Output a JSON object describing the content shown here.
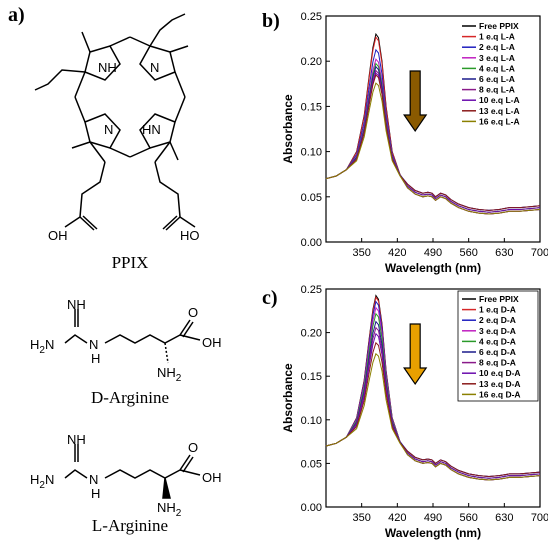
{
  "figure": {
    "label_a": "a)",
    "label_b": "b)",
    "label_c": "c)"
  },
  "molecules": {
    "ppix": {
      "caption": "PPIX",
      "atoms": {
        "nh": "NH",
        "n": "N",
        "hn": "HN",
        "oh": "OH",
        "ho": "HO"
      }
    },
    "d_arginine": {
      "caption": "D-Arginine",
      "atoms": {
        "nh": "NH",
        "h2n": "H2N",
        "n_h": "N",
        "h": "H",
        "o": "O",
        "oh": "OH",
        "nh2": "NH2"
      }
    },
    "l_arginine": {
      "caption": "L-Arginine",
      "atoms": {
        "nh": "NH",
        "h2n": "H2N",
        "n_h": "N",
        "h": "H",
        "o": "O",
        "oh": "OH",
        "nh2": "NH2"
      }
    }
  },
  "colors": {
    "arrow_b_fill": "#8a5a00",
    "arrow_c_fill": "#e8a000",
    "axis": "#000000"
  },
  "chart_data": [
    {
      "type": "line",
      "panel": "b",
      "xlabel": "Wavelength (nm)",
      "ylabel": "Absorbance",
      "xlim": [
        280,
        700
      ],
      "ylim": [
        0,
        0.25
      ],
      "xticks": [
        350,
        420,
        490,
        560,
        630,
        700
      ],
      "yticks": [
        0.0,
        0.05,
        0.1,
        0.15,
        0.2,
        0.25
      ],
      "xtick_labels": [
        "350",
        "420",
        "490",
        "560",
        "630",
        "700"
      ],
      "ytick_labels": [
        "0.00",
        "0.05",
        "0.10",
        "0.15",
        "0.20",
        "0.25"
      ],
      "legend_position": "top-right",
      "legend_box": false,
      "series": [
        {
          "name": "Free PPIX",
          "color": "#000000",
          "peak": 0.23
        },
        {
          "name": "1 e.q L-A",
          "color": "#d62728",
          "peak": 0.225
        },
        {
          "name": "2 e.q L-A",
          "color": "#1f1fbf",
          "peak": 0.205
        },
        {
          "name": "3 e.q L-A",
          "color": "#c020c0",
          "peak": 0.19
        },
        {
          "name": "4 e.q L-A",
          "color": "#2a9a2a",
          "peak": 0.183
        },
        {
          "name": "6 e.q L-A",
          "color": "#1a1a8a",
          "peak": 0.178
        },
        {
          "name": "8 e.q L-A",
          "color": "#8a1a8a",
          "peak": 0.172
        },
        {
          "name": "10 e.q L-A",
          "color": "#6a0dad",
          "peak": 0.168
        },
        {
          "name": "13 e.q L-A",
          "color": "#8b1a1a",
          "peak": 0.165
        },
        {
          "name": "16 e.q L-A",
          "color": "#8b8000",
          "peak": 0.152
        }
      ],
      "profile": {
        "x": [
          280,
          300,
          320,
          340,
          355,
          365,
          372,
          378,
          383,
          390,
          398,
          410,
          425,
          440,
          455,
          470,
          480,
          488,
          495,
          505,
          515,
          525,
          540,
          560,
          580,
          600,
          620,
          640,
          660,
          680,
          700
        ],
        "base_at_peak_0230": [
          0.07,
          0.073,
          0.08,
          0.1,
          0.14,
          0.185,
          0.215,
          0.23,
          0.226,
          0.2,
          0.15,
          0.1,
          0.075,
          0.062,
          0.055,
          0.052,
          0.053,
          0.052,
          0.048,
          0.052,
          0.05,
          0.045,
          0.04,
          0.036,
          0.034,
          0.033,
          0.034,
          0.036,
          0.036,
          0.037,
          0.038
        ]
      }
    },
    {
      "type": "line",
      "panel": "c",
      "xlabel": "Wavelength (nm)",
      "ylabel": "Absorbance",
      "xlim": [
        280,
        700
      ],
      "ylim": [
        0,
        0.25
      ],
      "xticks": [
        350,
        420,
        490,
        560,
        630,
        700
      ],
      "yticks": [
        0.0,
        0.05,
        0.1,
        0.15,
        0.2,
        0.25
      ],
      "xtick_labels": [
        "350",
        "420",
        "490",
        "560",
        "630",
        "700"
      ],
      "ytick_labels": [
        "0.00",
        "0.05",
        "0.10",
        "0.15",
        "0.20",
        "0.25"
      ],
      "legend_position": "top-right",
      "legend_box": true,
      "series": [
        {
          "name": "Free PPIX",
          "color": "#000000",
          "peak": 0.248
        },
        {
          "name": "1 e.q D-A",
          "color": "#d62728",
          "peak": 0.245
        },
        {
          "name": "2 e.q D-A",
          "color": "#1f1fbf",
          "peak": 0.238
        },
        {
          "name": "3 e.q D-A",
          "color": "#c020c0",
          "peak": 0.228
        },
        {
          "name": "4 e.q D-A",
          "color": "#2a9a2a",
          "peak": 0.218
        },
        {
          "name": "6 e.q D-A",
          "color": "#1a1a8a",
          "peak": 0.205
        },
        {
          "name": "8 e.q D-A",
          "color": "#8a1a8a",
          "peak": 0.195
        },
        {
          "name": "10 e.q D-A",
          "color": "#6a0dad",
          "peak": 0.185
        },
        {
          "name": "13 e.q D-A",
          "color": "#8b1a1a",
          "peak": 0.17
        },
        {
          "name": "16 e.q D-A",
          "color": "#8b8000",
          "peak": 0.152
        }
      ],
      "profile": {
        "x": [
          280,
          300,
          320,
          340,
          355,
          365,
          372,
          378,
          383,
          390,
          398,
          410,
          425,
          440,
          455,
          470,
          480,
          488,
          495,
          505,
          515,
          525,
          540,
          560,
          580,
          600,
          620,
          640,
          660,
          680,
          700
        ],
        "base_at_peak_0230": [
          0.07,
          0.073,
          0.08,
          0.1,
          0.14,
          0.185,
          0.215,
          0.23,
          0.226,
          0.2,
          0.15,
          0.1,
          0.075,
          0.062,
          0.055,
          0.052,
          0.053,
          0.052,
          0.048,
          0.052,
          0.05,
          0.045,
          0.04,
          0.036,
          0.034,
          0.033,
          0.034,
          0.036,
          0.036,
          0.037,
          0.038
        ]
      }
    }
  ]
}
